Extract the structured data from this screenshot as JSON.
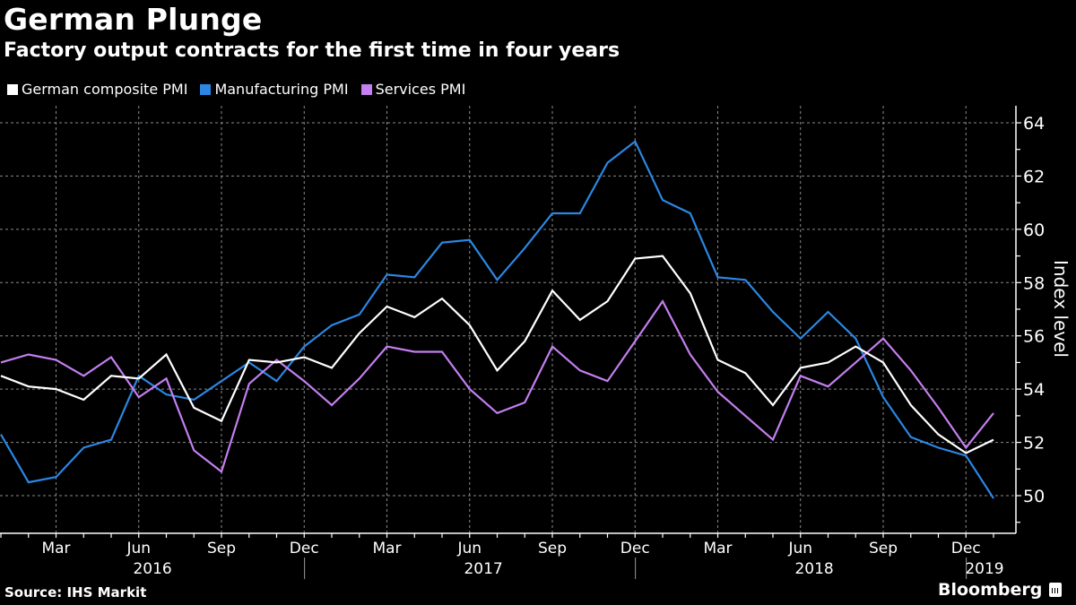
{
  "header": {
    "title": "German Plunge",
    "subtitle": "Factory output contracts for the first time in four years"
  },
  "footer": {
    "source": "Source: IHS Markit",
    "brand": "Bloomberg",
    "brand_icon": "bloomberg-chart-icon"
  },
  "chart_data": {
    "type": "line",
    "title": "German Plunge",
    "subtitle": "Factory output contracts for the first time in four years",
    "xlabel": "",
    "ylabel": "Index level",
    "ylim": [
      48.6,
      64.6
    ],
    "yticks": [
      50,
      52,
      54,
      56,
      58,
      60,
      62,
      64
    ],
    "grid": true,
    "legend_position": "top-left",
    "x": [
      "2016-01",
      "2016-02",
      "2016-03",
      "2016-04",
      "2016-05",
      "2016-06",
      "2016-07",
      "2016-08",
      "2016-09",
      "2016-10",
      "2016-11",
      "2016-12",
      "2017-01",
      "2017-02",
      "2017-03",
      "2017-04",
      "2017-05",
      "2017-06",
      "2017-07",
      "2017-08",
      "2017-09",
      "2017-10",
      "2017-11",
      "2017-12",
      "2018-01",
      "2018-02",
      "2018-03",
      "2018-04",
      "2018-05",
      "2018-06",
      "2018-07",
      "2018-08",
      "2018-09",
      "2018-10",
      "2018-11",
      "2018-12",
      "2019-01"
    ],
    "month_ticks": [
      {
        "label": "Mar",
        "index": 2
      },
      {
        "label": "Jun",
        "index": 5
      },
      {
        "label": "Sep",
        "index": 8
      },
      {
        "label": "Dec",
        "index": 11
      },
      {
        "label": "Mar",
        "index": 14
      },
      {
        "label": "Jun",
        "index": 17
      },
      {
        "label": "Sep",
        "index": 20
      },
      {
        "label": "Dec",
        "index": 23
      },
      {
        "label": "Mar",
        "index": 26
      },
      {
        "label": "Jun",
        "index": 29
      },
      {
        "label": "Sep",
        "index": 32
      },
      {
        "label": "Dec",
        "index": 35
      }
    ],
    "year_labels": [
      {
        "label": "2016",
        "index": 5.5
      },
      {
        "label": "2017",
        "index": 17.5
      },
      {
        "label": "2018",
        "index": 29.5
      },
      {
        "label": "2019",
        "index": 36
      }
    ],
    "year_separators": [
      11.5,
      23.5,
      35.5
    ],
    "series": [
      {
        "name": "German composite PMI",
        "color": "#ffffff",
        "values": [
          54.5,
          54.1,
          54.0,
          53.6,
          54.5,
          54.4,
          55.3,
          53.3,
          52.8,
          55.1,
          55.0,
          55.2,
          54.8,
          56.1,
          57.1,
          56.7,
          57.4,
          56.4,
          54.7,
          55.8,
          57.7,
          56.6,
          57.3,
          58.9,
          59.0,
          57.6,
          55.1,
          54.6,
          53.4,
          54.8,
          55.0,
          55.6,
          55.0,
          53.4,
          52.3,
          51.6,
          52.1
        ]
      },
      {
        "name": "Manufacturing PMI",
        "color": "#2b87e3",
        "values": [
          52.3,
          50.5,
          50.7,
          51.8,
          52.1,
          54.5,
          53.8,
          53.6,
          54.3,
          55.0,
          54.3,
          55.6,
          56.4,
          56.8,
          58.3,
          58.2,
          59.5,
          59.6,
          58.1,
          59.3,
          60.6,
          60.6,
          62.5,
          63.3,
          61.1,
          60.6,
          58.2,
          58.1,
          56.9,
          55.9,
          56.9,
          55.9,
          53.7,
          52.2,
          51.8,
          51.5,
          49.9
        ]
      },
      {
        "name": "Services PMI",
        "color": "#c47ff0",
        "values": [
          55.0,
          55.3,
          55.1,
          54.5,
          55.2,
          53.7,
          54.4,
          51.7,
          50.9,
          54.2,
          55.1,
          54.3,
          53.4,
          54.4,
          55.6,
          55.4,
          55.4,
          54.0,
          53.1,
          53.5,
          55.6,
          54.7,
          54.3,
          55.8,
          57.3,
          55.3,
          53.9,
          53.0,
          52.1,
          54.5,
          54.1,
          55.0,
          55.9,
          54.7,
          53.3,
          51.8,
          53.1
        ]
      }
    ]
  }
}
